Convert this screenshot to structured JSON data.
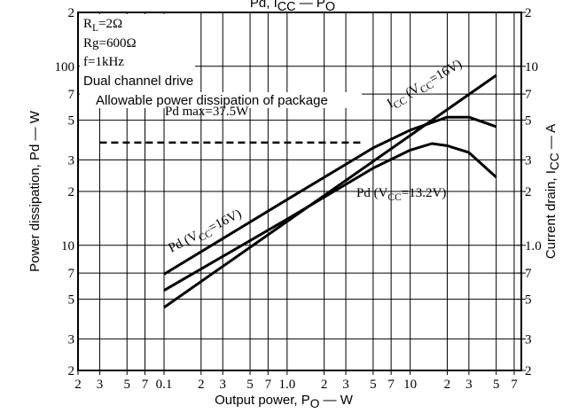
{
  "chart_data": {
    "type": "line",
    "title": {
      "parts": [
        "Pd, I",
        "CC",
        " — P",
        "O"
      ]
    },
    "x_label": {
      "parts": [
        "Output power, P",
        "O",
        " — W"
      ]
    },
    "y_label": {
      "parts": [
        "Power dissipation, Pd — W"
      ]
    },
    "y2_label": {
      "parts": [
        "Current drain, I",
        "CC",
        " — A"
      ]
    },
    "log_x": true,
    "log_y": true,
    "grid": true,
    "xlim": [
      0.02,
      80
    ],
    "ylim": [
      2,
      200
    ],
    "y2lim": [
      0.2,
      20
    ],
    "xticks": [
      {
        "value": 0.02,
        "label": "2"
      },
      {
        "value": 0.03,
        "label": "3"
      },
      {
        "value": 0.05,
        "label": "5"
      },
      {
        "value": 0.07,
        "label": "7"
      },
      0.1,
      {
        "value": 0.2,
        "label": "2"
      },
      {
        "value": 0.3,
        "label": "3"
      },
      {
        "value": 0.5,
        "label": "5"
      },
      {
        "value": 0.7,
        "label": "7"
      },
      {
        "value": 1,
        "label": "1.0"
      },
      2,
      3,
      5,
      7,
      10,
      {
        "value": 20,
        "label": "2"
      },
      {
        "value": 30,
        "label": "3"
      },
      {
        "value": 50,
        "label": "5"
      },
      {
        "value": 70,
        "label": "7"
      }
    ],
    "yticks": [
      2,
      3,
      5,
      7,
      10,
      {
        "value": 20,
        "label": "2"
      },
      {
        "value": 30,
        "label": "3"
      },
      {
        "value": 50,
        "label": "5"
      },
      {
        "value": 70,
        "label": "7"
      },
      100,
      {
        "value": 200,
        "label": "2"
      }
    ],
    "y2ticks": [
      {
        "value": 0.2,
        "label": "2"
      },
      {
        "value": 0.3,
        "label": "3"
      },
      {
        "value": 0.5,
        "label": "5"
      },
      {
        "value": 0.7,
        "label": "7"
      },
      {
        "value": 1,
        "label": "1.0"
      },
      2,
      3,
      5,
      7,
      10,
      {
        "value": 20,
        "label": "2"
      }
    ],
    "series": [
      {
        "name": {
          "parts": [
            "Pd (V",
            "CC",
            "=16V)"
          ]
        },
        "color": "#000000",
        "x": [
          0.1,
          1,
          5,
          10,
          20,
          30,
          50
        ],
        "values": [
          6.9,
          18,
          35,
          44,
          52,
          52,
          46
        ]
      },
      {
        "name": {
          "parts": [
            "Pd (V",
            "CC",
            "=13.2V)"
          ]
        },
        "color": "#000000",
        "x": [
          0.1,
          1,
          5,
          10,
          15,
          20,
          30,
          50
        ],
        "values": [
          5.6,
          14,
          27,
          34,
          37,
          36,
          33,
          24
        ]
      },
      {
        "name": {
          "parts": [
            "I",
            "CC",
            " (V",
            "CC",
            "=16V)"
          ]
        },
        "color": "#000000",
        "axis": "y2",
        "x": [
          0.1,
          50
        ],
        "values": [
          0.45,
          8.9
        ]
      },
      {
        "name": {
          "parts": [
            "Pd max=37.5W"
          ]
        },
        "color": "#000000",
        "dashed": true,
        "x": [
          0.03,
          4
        ],
        "values": [
          37.5,
          37.5
        ]
      }
    ],
    "annotations": [
      {
        "parts": [
          "R",
          "L",
          "=2Ω"
        ]
      },
      {
        "parts": [
          "Rg=600Ω"
        ]
      },
      {
        "parts": [
          "f=1kHz"
        ]
      },
      {
        "parts": [
          "Dual channel drive"
        ]
      },
      {
        "parts": [
          "Allowable power dissipation of package"
        ]
      }
    ]
  }
}
